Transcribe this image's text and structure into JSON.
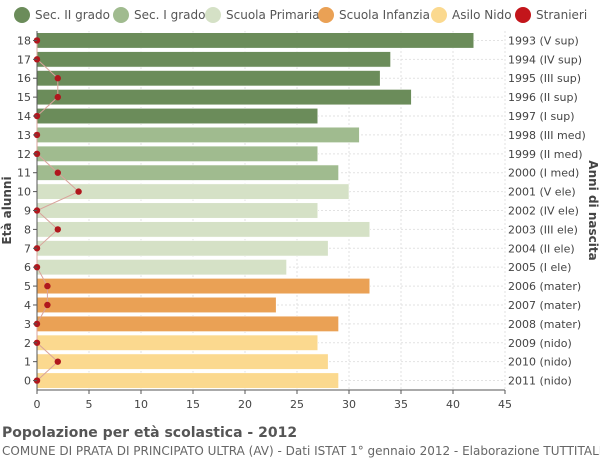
{
  "legend": [
    {
      "label": "Sec. II grado",
      "color": "#6b8c5a"
    },
    {
      "label": "Sec. I grado",
      "color": "#a0bb8f"
    },
    {
      "label": "Scuola Primaria",
      "color": "#d5e1c6"
    },
    {
      "label": "Scuola Infanzia",
      "color": "#eaa155"
    },
    {
      "label": "Asilo Nido",
      "color": "#fbd98f"
    },
    {
      "label": "Stranieri",
      "color": "#c3151b"
    }
  ],
  "footer": {
    "title": "Popolazione per età scolastica - 2012",
    "subtitle": "COMUNE DI PRATA DI PRINCIPATO ULTRA (AV) - Dati ISTAT 1° gennaio 2012 - Elaborazione TUTTITALIA.IT"
  },
  "chart_data": {
    "type": "bar",
    "orientation": "horizontal",
    "ylabel": "Età alunni",
    "ylabel_right": "Anni di nascita",
    "xlim": [
      0,
      45
    ],
    "xticks": [
      0,
      5,
      10,
      15,
      20,
      25,
      30,
      35,
      40,
      45
    ],
    "grid": true,
    "legend_position": "top",
    "categories": [
      "18",
      "17",
      "16",
      "15",
      "14",
      "13",
      "12",
      "11",
      "10",
      "9",
      "8",
      "7",
      "6",
      "5",
      "4",
      "3",
      "2",
      "1",
      "0"
    ],
    "birth_years": [
      "1993 (V sup)",
      "1994 (IV sup)",
      "1995 (III sup)",
      "1996 (II sup)",
      "1997 (I sup)",
      "1998 (III med)",
      "1999 (II med)",
      "2000 (I med)",
      "2001 (V ele)",
      "2002 (IV ele)",
      "2003 (III ele)",
      "2004 (II ele)",
      "2005 (I ele)",
      "2006 (mater)",
      "2007 (mater)",
      "2008 (mater)",
      "2009 (nido)",
      "2010 (nido)",
      "2011 (nido)"
    ],
    "values": [
      42,
      34,
      33,
      36,
      27,
      31,
      27,
      29,
      30,
      27,
      32,
      28,
      24,
      32,
      23,
      29,
      27,
      28,
      29
    ],
    "groups": [
      "Sec. II grado",
      "Sec. II grado",
      "Sec. II grado",
      "Sec. II grado",
      "Sec. II grado",
      "Sec. I grado",
      "Sec. I grado",
      "Sec. I grado",
      "Scuola Primaria",
      "Scuola Primaria",
      "Scuola Primaria",
      "Scuola Primaria",
      "Scuola Primaria",
      "Scuola Infanzia",
      "Scuola Infanzia",
      "Scuola Infanzia",
      "Asilo Nido",
      "Asilo Nido",
      "Asilo Nido"
    ],
    "stranieri": [
      0,
      0,
      2,
      2,
      0,
      0,
      0,
      2,
      4,
      0,
      2,
      0,
      0,
      1,
      1,
      0,
      0,
      2,
      0
    ],
    "stranieri_line_color": "#d9a39b"
  }
}
